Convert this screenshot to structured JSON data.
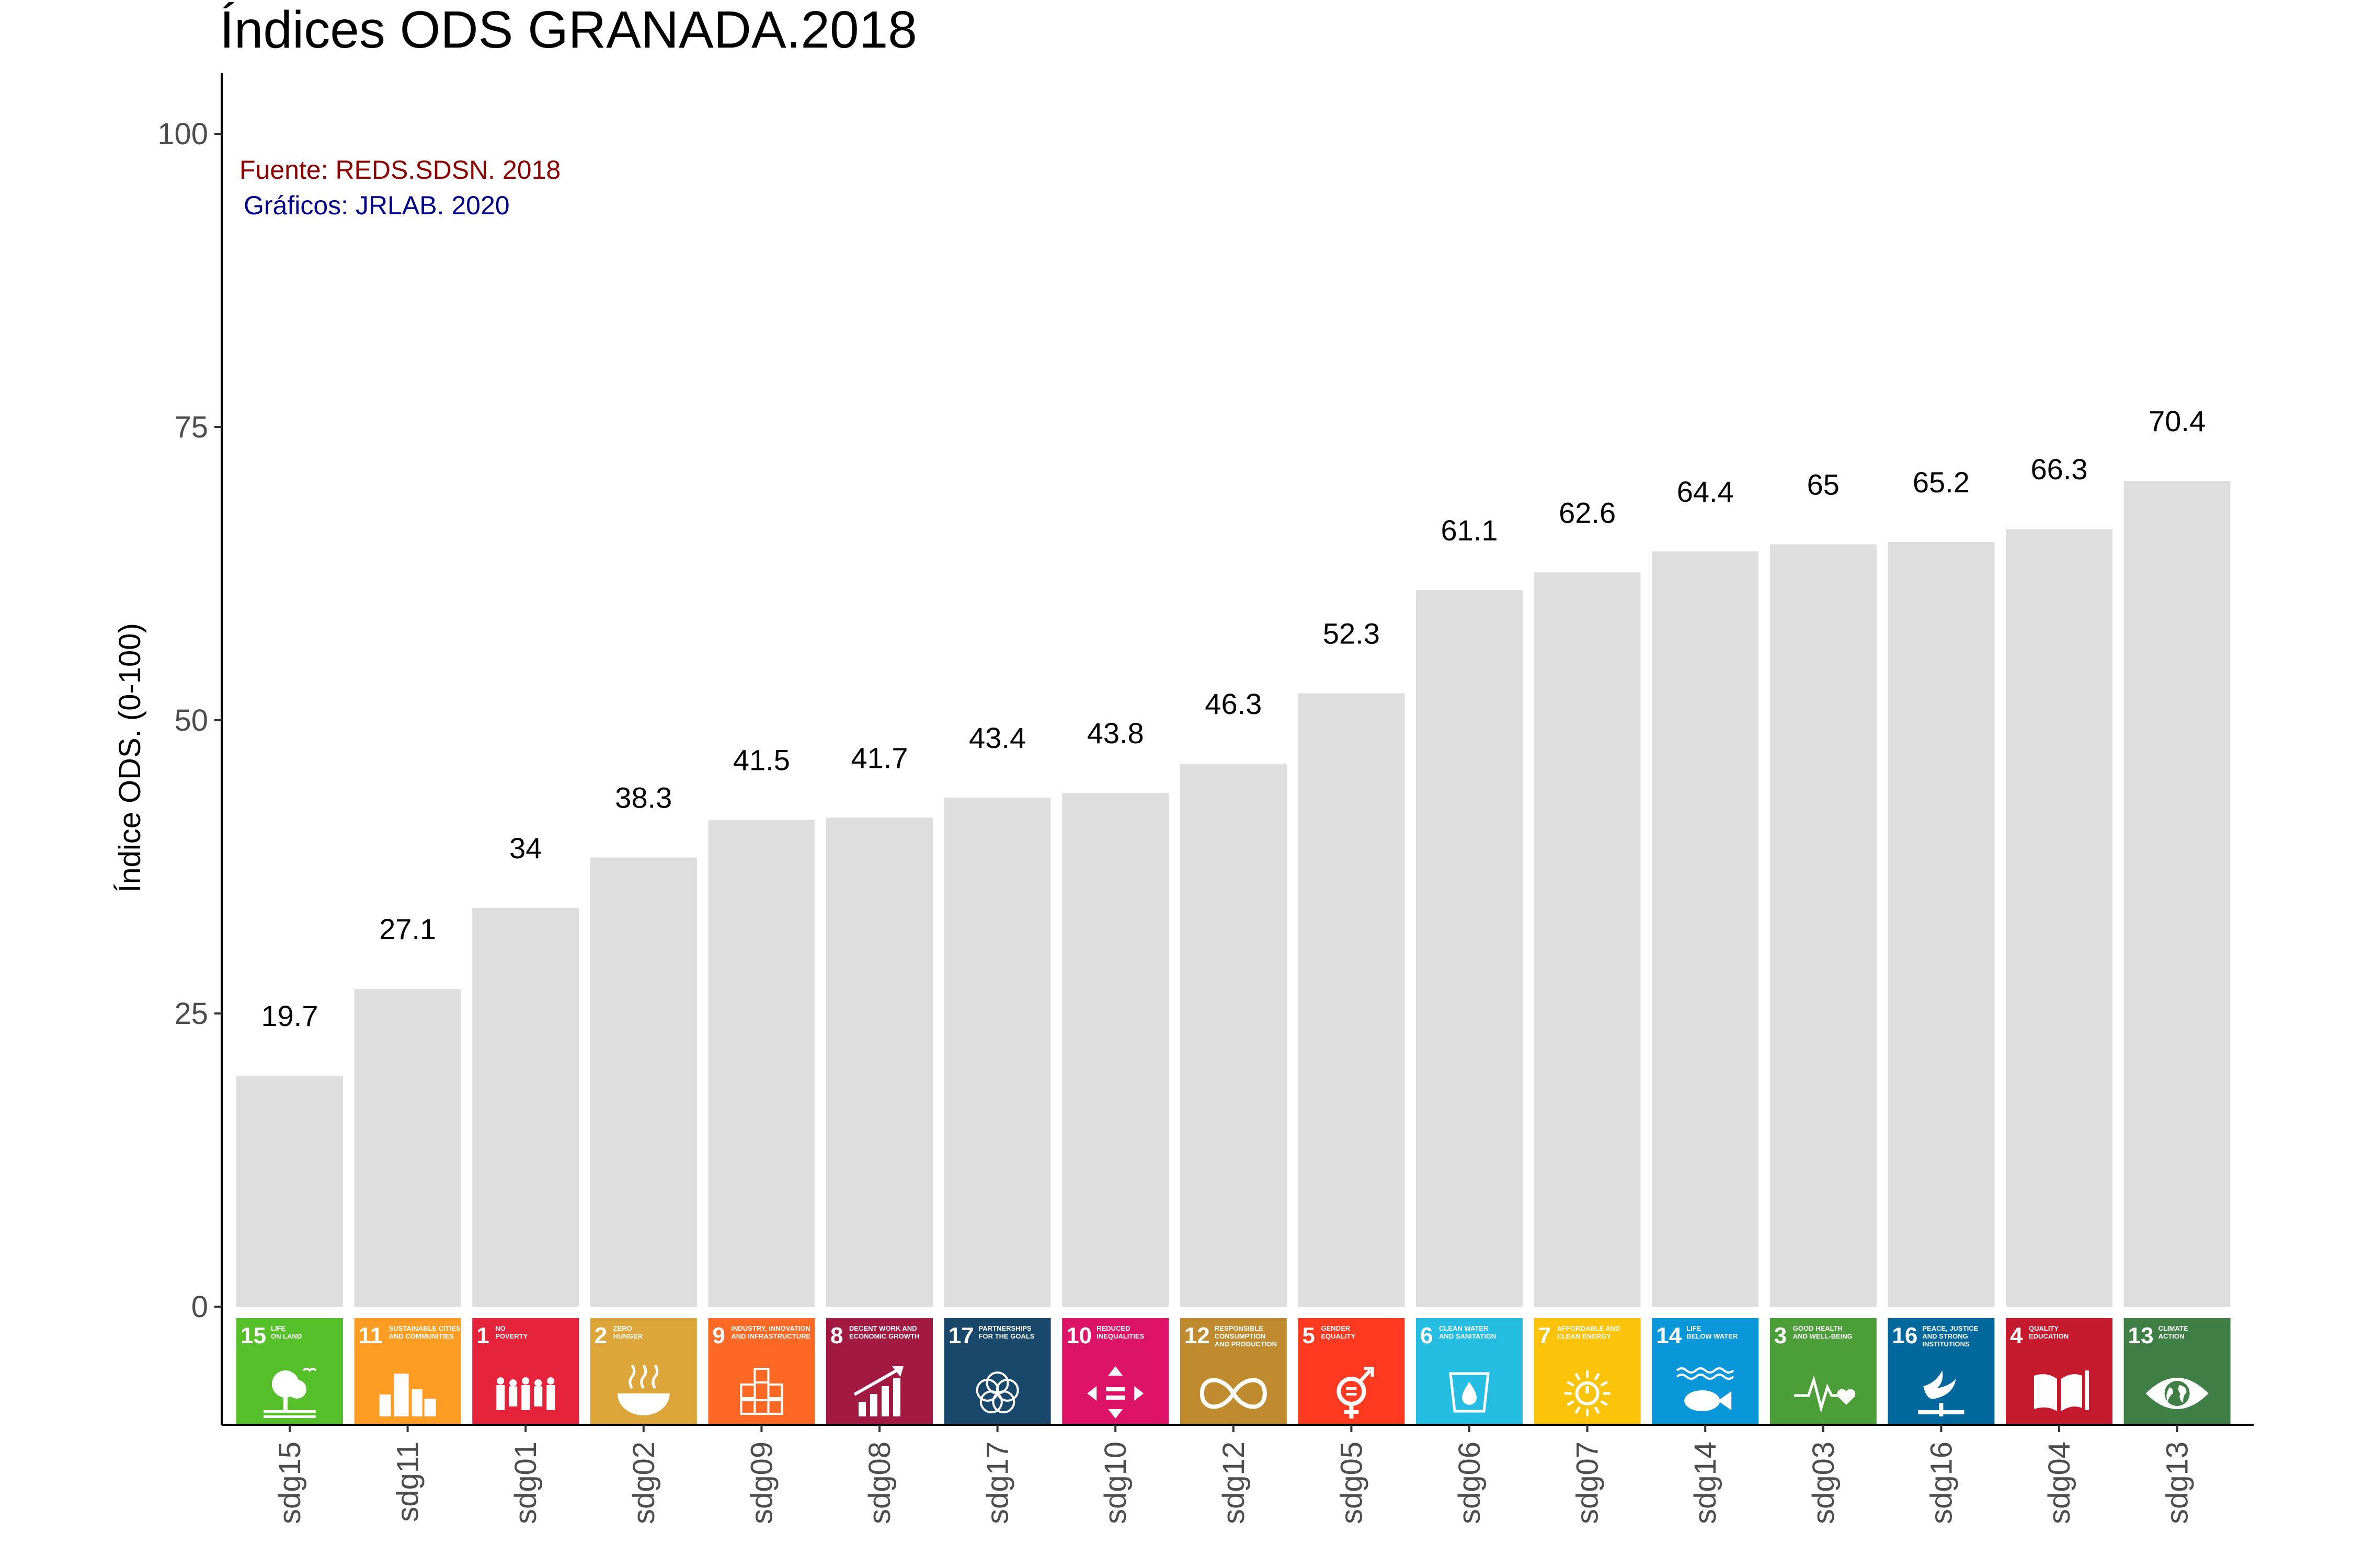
{
  "chart_data": {
    "type": "bar",
    "title": "Índices ODS GRANADA.2018",
    "ylabel": "Índice ODS. (0-100)",
    "xlabel": "",
    "ylim": [
      0,
      100
    ],
    "yticks": [
      0,
      25,
      50,
      75,
      100
    ],
    "grid": false,
    "categories": [
      "sdg15",
      "sdg11",
      "sdg01",
      "sdg02",
      "sdg09",
      "sdg08",
      "sdg17",
      "sdg10",
      "sdg12",
      "sdg05",
      "sdg06",
      "sdg07",
      "sdg14",
      "sdg03",
      "sdg16",
      "sdg04",
      "sdg13"
    ],
    "values": [
      19.7,
      27.1,
      34,
      38.3,
      41.5,
      41.7,
      43.4,
      43.8,
      46.3,
      52.3,
      61.1,
      62.6,
      64.4,
      65,
      65.2,
      66.3,
      70.4
    ],
    "bar_color": "#dedede",
    "annotations": [
      {
        "text": "Fuente: REDS.SDSN. 2018",
        "color": "#8b0000"
      },
      {
        "text": "Gráficos: JRLAB. 2020",
        "color": "#00008b"
      }
    ],
    "sdg_icons": [
      {
        "num": "15",
        "label": [
          "LIFE",
          "ON LAND"
        ],
        "color": "#56c02b",
        "icon": "tree-icon"
      },
      {
        "num": "11",
        "label": [
          "SUSTAINABLE CITIES",
          "AND COMMUNITIES"
        ],
        "color": "#fd9d24",
        "icon": "city-icon"
      },
      {
        "num": "1",
        "label": [
          "NO",
          "POVERTY"
        ],
        "color": "#e5243b",
        "icon": "family-icon"
      },
      {
        "num": "2",
        "label": [
          "ZERO",
          "HUNGER"
        ],
        "color": "#dda63a",
        "icon": "bowl-icon"
      },
      {
        "num": "9",
        "label": [
          "INDUSTRY, INNOVATION",
          "AND INFRASTRUCTURE"
        ],
        "color": "#fd6925",
        "icon": "cubes-icon"
      },
      {
        "num": "8",
        "label": [
          "DECENT WORK AND",
          "ECONOMIC GROWTH"
        ],
        "color": "#a21942",
        "icon": "growth-chart-icon"
      },
      {
        "num": "17",
        "label": [
          "PARTNERSHIPS",
          "FOR THE GOALS"
        ],
        "color": "#19486a",
        "icon": "flower-icon"
      },
      {
        "num": "10",
        "label": [
          "REDUCED",
          "INEQUALITIES"
        ],
        "color": "#dd1367",
        "icon": "equality-arrows-icon"
      },
      {
        "num": "12",
        "label": [
          "RESPONSIBLE",
          "CONSUMPTION",
          "AND PRODUCTION"
        ],
        "color": "#bf8b2e",
        "icon": "infinity-icon"
      },
      {
        "num": "5",
        "label": [
          "GENDER",
          "EQUALITY"
        ],
        "color": "#ff3a21",
        "icon": "gender-icon"
      },
      {
        "num": "6",
        "label": [
          "CLEAN WATER",
          "AND SANITATION"
        ],
        "color": "#26bde2",
        "icon": "water-drop-icon"
      },
      {
        "num": "7",
        "label": [
          "AFFORDABLE AND",
          "CLEAN ENERGY"
        ],
        "color": "#fcc30b",
        "icon": "sun-power-icon"
      },
      {
        "num": "14",
        "label": [
          "LIFE",
          "BELOW WATER"
        ],
        "color": "#0a97d9",
        "icon": "fish-icon"
      },
      {
        "num": "3",
        "label": [
          "GOOD HEALTH",
          "AND WELL-BEING"
        ],
        "color": "#4c9f38",
        "icon": "heartbeat-icon"
      },
      {
        "num": "16",
        "label": [
          "PEACE, JUSTICE",
          "AND STRONG",
          "INSTITUTIONS"
        ],
        "color": "#00689d",
        "icon": "dove-icon"
      },
      {
        "num": "4",
        "label": [
          "QUALITY",
          "EDUCATION"
        ],
        "color": "#c5192d",
        "icon": "book-icon"
      },
      {
        "num": "13",
        "label": [
          "CLIMATE",
          "ACTION"
        ],
        "color": "#3f7e44",
        "icon": "eye-globe-icon"
      }
    ]
  }
}
